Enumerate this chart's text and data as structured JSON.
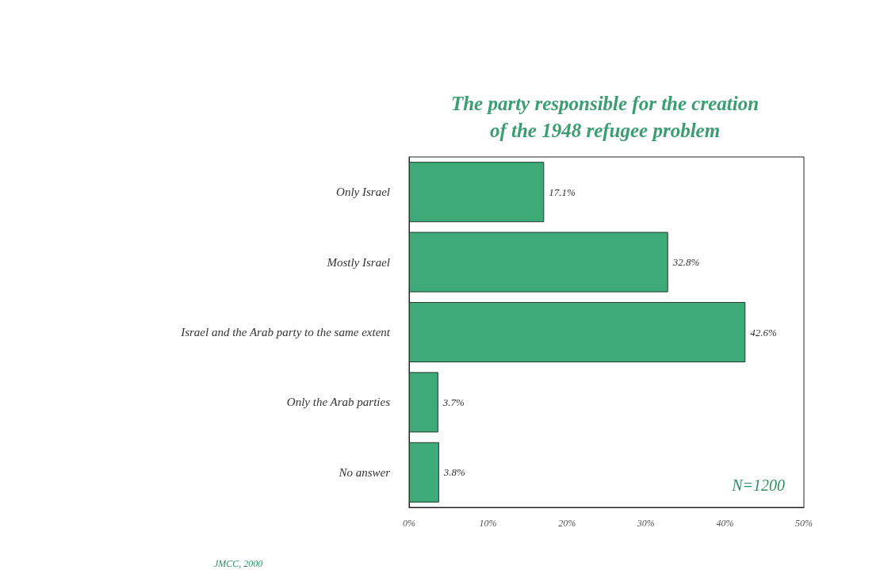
{
  "chart_data": {
    "type": "bar",
    "orientation": "horizontal",
    "title": "The party responsible for the creation\nof the 1948 refugee problem",
    "categories": [
      "Only Israel",
      "Mostly Israel",
      "Israel and the Arab party to the same extent",
      "Only the Arab parties",
      "No answer"
    ],
    "values": [
      17.1,
      32.8,
      42.6,
      3.7,
      3.8
    ],
    "value_labels": [
      "17.1%",
      "32.8%",
      "42.6%",
      "3.7%",
      "3.8%"
    ],
    "color": "#3daa78",
    "xlim": [
      0,
      50
    ],
    "xticks": [
      {
        "value": 0,
        "label": "0%"
      },
      {
        "value": 10,
        "label": "10%"
      },
      {
        "value": 20,
        "label": "20%"
      },
      {
        "value": 30,
        "label": "30%"
      },
      {
        "value": 40,
        "label": "40%"
      },
      {
        "value": 50,
        "label": "50%"
      }
    ],
    "grid": false,
    "annotations": [
      "N=1200",
      "JMCC, 2000"
    ]
  }
}
